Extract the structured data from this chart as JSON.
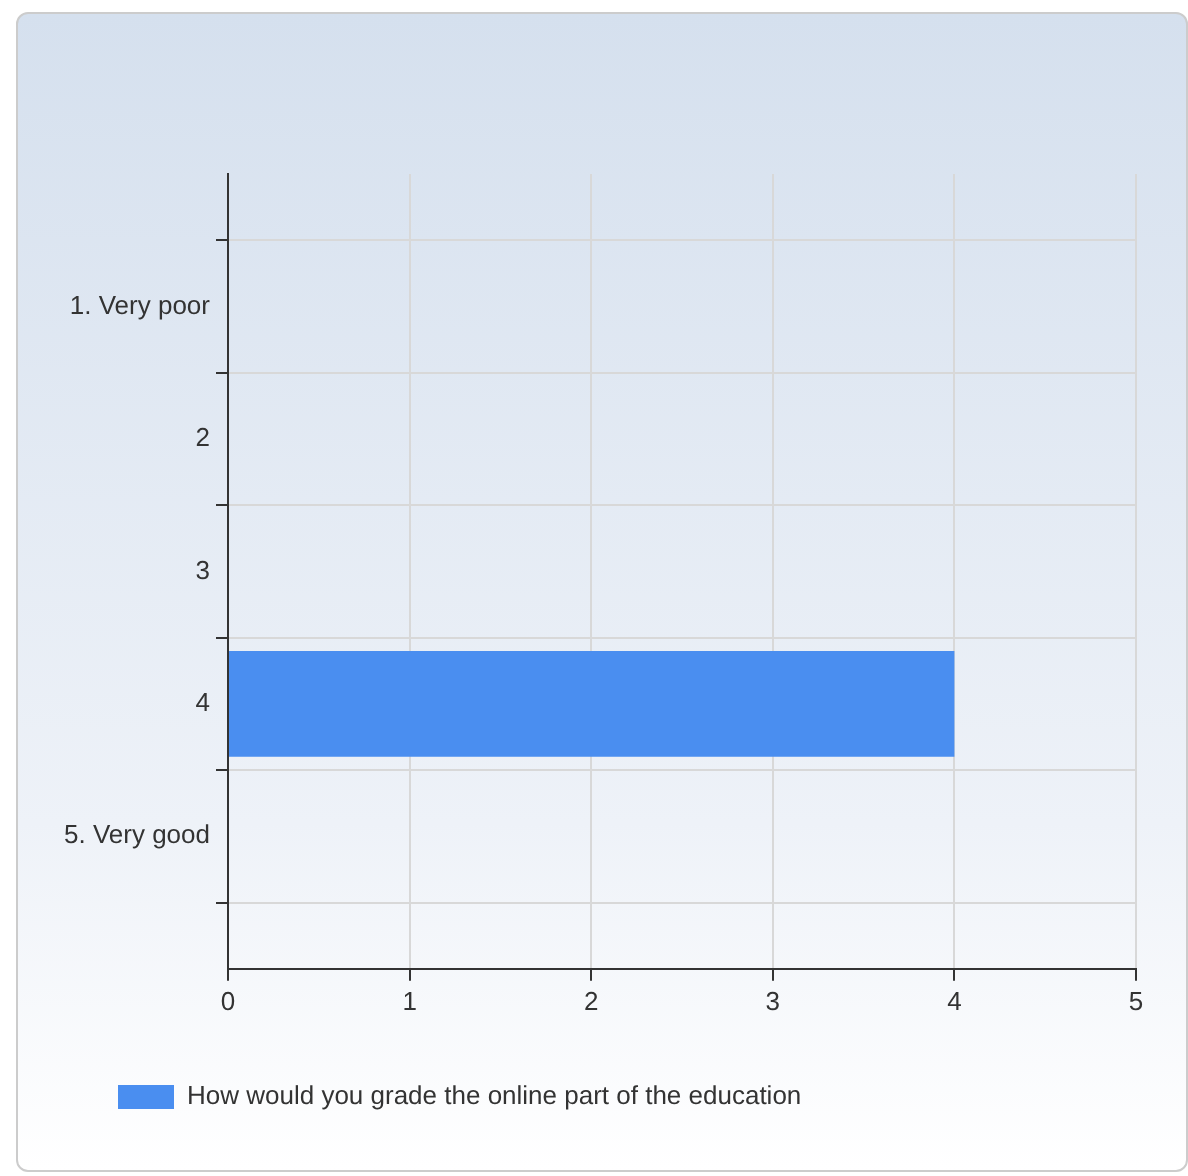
{
  "chart_data": {
    "type": "bar",
    "orientation": "horizontal",
    "categories": [
      "1. Very poor",
      "2",
      "3",
      "4",
      "5. Very good"
    ],
    "series": [
      {
        "name": "How would you grade the online part of the education",
        "color": "#4a8ef0",
        "values": [
          0,
          0,
          0,
          4,
          0
        ]
      }
    ],
    "xlim": [
      0,
      5
    ],
    "xticks": [
      0,
      1,
      2,
      3,
      4,
      5
    ],
    "grid": true,
    "legend": "bottom left"
  }
}
